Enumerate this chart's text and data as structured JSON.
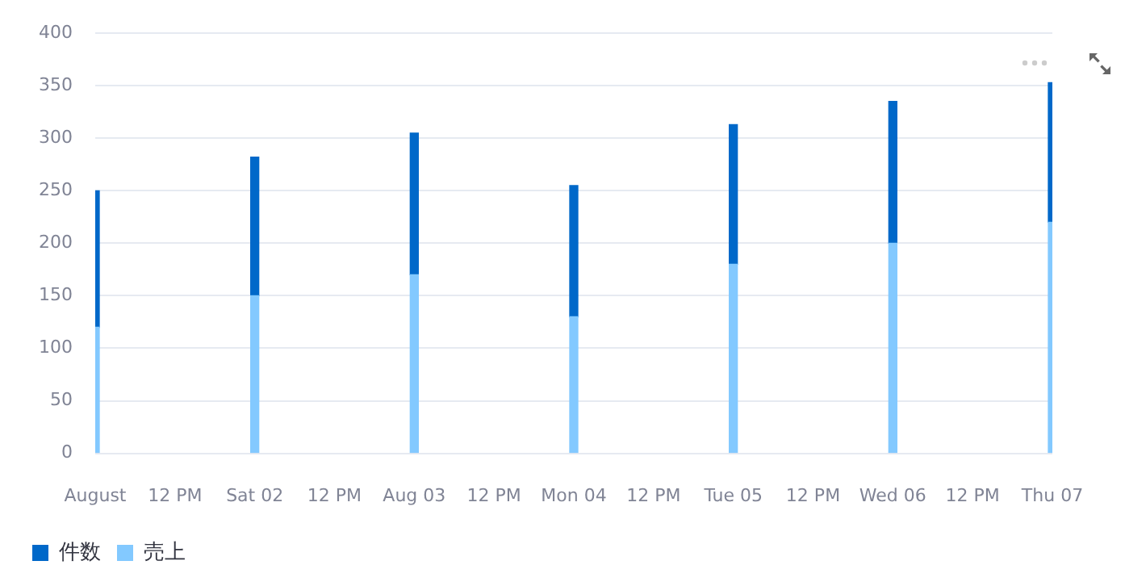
{
  "chart_data": {
    "type": "bar",
    "stacked": true,
    "categories": [
      "August",
      "12 PM",
      "Sat 02",
      "12 PM",
      "Aug 03",
      "12 PM",
      "Mon 04",
      "12 PM",
      "Tue 05",
      "12 PM",
      "Wed 06",
      "12 PM",
      "Thu 07"
    ],
    "series": [
      {
        "name": "売上",
        "color": "#83c9ff",
        "values": [
          120,
          null,
          150,
          null,
          170,
          null,
          130,
          null,
          180,
          null,
          200,
          null,
          220
        ]
      },
      {
        "name": "件数",
        "color": "#0068c9",
        "values": [
          130,
          null,
          132,
          null,
          135,
          null,
          125,
          null,
          133,
          null,
          135,
          null,
          133
        ]
      }
    ],
    "ylim": [
      0,
      400
    ],
    "yticks": [
      0,
      50,
      100,
      150,
      200,
      250,
      300,
      350,
      400
    ],
    "grid": "y",
    "legend": "bottom left"
  }
}
